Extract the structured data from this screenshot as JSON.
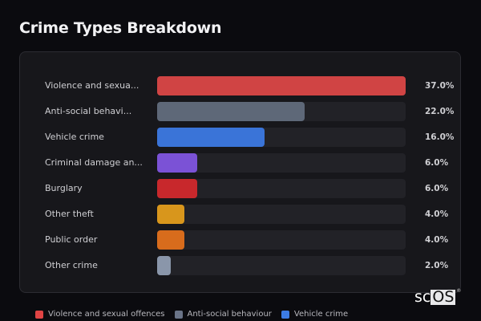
{
  "title": "Crime Types Breakdown",
  "chart_data": {
    "type": "bar",
    "orientation": "horizontal",
    "title": "Crime Types Breakdown",
    "categories": [
      "Violence and sexual offences",
      "Anti-social behaviour",
      "Vehicle crime",
      "Criminal damage and arson",
      "Burglary",
      "Other theft",
      "Public order",
      "Other crime"
    ],
    "display_labels": [
      "Violence and sexua...",
      "Anti-social behavi...",
      "Vehicle crime",
      "Criminal damage an...",
      "Burglary",
      "Other theft",
      "Public order",
      "Other crime"
    ],
    "values": [
      37.0,
      22.0,
      16.0,
      6.0,
      6.0,
      4.0,
      4.0,
      2.0
    ],
    "value_labels": [
      "37.0%",
      "22.0%",
      "16.0%",
      "6.0%",
      "6.0%",
      "4.0%",
      "4.0%",
      "2.0%"
    ],
    "colors": [
      "#d04444",
      "#5e6878",
      "#3a74d8",
      "#7b52d6",
      "#c8282c",
      "#d8961c",
      "#d86c1c",
      "#8a96aa"
    ],
    "xlim": [
      0,
      37
    ],
    "grid": false,
    "legend_position": "bottom"
  },
  "legend": [
    {
      "label": "Violence and sexual offences",
      "color": "#e04444"
    },
    {
      "label": "Anti-social behaviour",
      "color": "#6a7488"
    },
    {
      "label": "Vehicle crime",
      "color": "#3c7ce6"
    }
  ],
  "watermark": {
    "prefix": "sc",
    "boxed": "OS",
    "reg": "®"
  }
}
